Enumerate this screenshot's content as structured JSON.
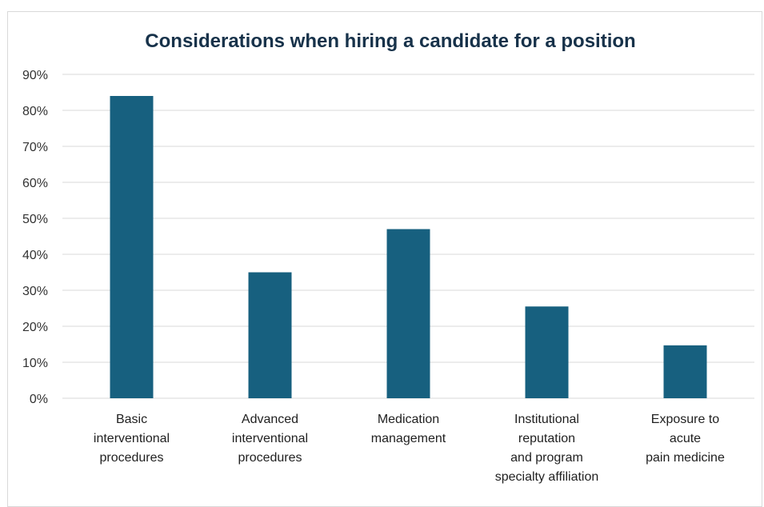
{
  "chart_data": {
    "type": "bar",
    "title": "Considerations when hiring a candidate for a position",
    "categories": [
      [
        "Basic",
        "interventional",
        "procedures"
      ],
      [
        "Advanced",
        "interventional",
        "procedures"
      ],
      [
        "Medication",
        "management"
      ],
      [
        "Institutional",
        "reputation",
        "and program",
        "specialty affiliation"
      ],
      [
        "Exposure to",
        "acute",
        "pain medicine"
      ]
    ],
    "values": [
      84,
      35,
      47,
      25.5,
      14.7
    ],
    "ylim": [
      0,
      90
    ],
    "yticks": [
      0,
      10,
      20,
      30,
      40,
      50,
      60,
      70,
      80,
      90
    ],
    "ytick_format": "%",
    "grid": true,
    "bar_color": "#17607f",
    "grid_color": "#d9d9d9"
  }
}
